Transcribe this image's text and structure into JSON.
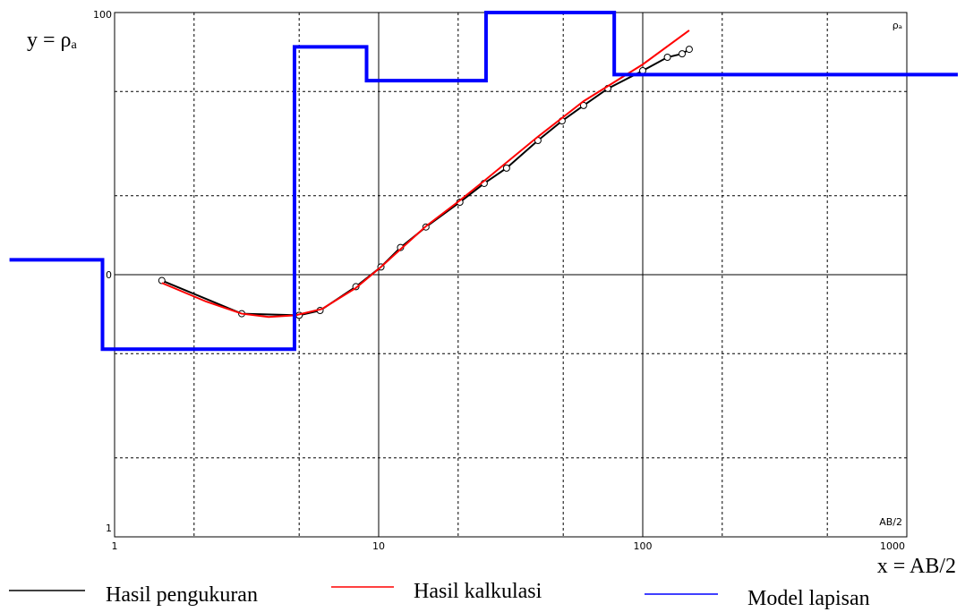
{
  "chart_data": {
    "type": "line",
    "y_label": "y = ρₐ",
    "x_label": "x = AB/2",
    "y_corner_label": "ρₐ",
    "x_corner_label": "AB/2",
    "log_x": true,
    "log_y": true,
    "grid": true,
    "xlim": [
      1,
      1000
    ],
    "ylim": [
      1,
      100
    ],
    "xticks": [
      1,
      10,
      100,
      1000
    ],
    "yticks": [
      1,
      {
        "value": 10,
        "label": "0"
      },
      100
    ],
    "x_minor_ticks": [
      2,
      5,
      20,
      50,
      200,
      500
    ],
    "y_minor_ticks": [
      2,
      5,
      20,
      50
    ],
    "series": [
      {
        "name": "Hasil pengukuran",
        "color": "#000000",
        "marker": "circle",
        "x": [
          1.51,
          3.03,
          5.0,
          6.0,
          8.2,
          10.2,
          12.1,
          15.1,
          20.3,
          25.1,
          30.5,
          40.1,
          49.5,
          59.7,
          73.8,
          100,
          124,
          141,
          150
        ],
        "values": [
          9.5,
          7.1,
          7.0,
          7.3,
          9.0,
          10.7,
          12.7,
          15.2,
          18.9,
          22.3,
          25.5,
          32.5,
          38.6,
          44.2,
          51.3,
          60.0,
          67.5,
          69.6,
          72.4
        ]
      },
      {
        "name": "Hasil kalkulasi",
        "color": "#ff0000",
        "x": [
          1.51,
          2.22,
          3.03,
          3.83,
          4.84,
          6.1,
          8.2,
          10.2,
          15.1,
          20.3,
          25.1,
          40.1,
          59.7,
          100,
          150
        ],
        "values": [
          9.3,
          7.9,
          7.1,
          6.9,
          7.0,
          7.4,
          8.9,
          10.7,
          15.3,
          19.2,
          22.8,
          33.6,
          45.9,
          63.4,
          85.5
        ]
      },
      {
        "name": "Model lapisan",
        "color": "#0000ff",
        "x": [
          0.4,
          0.9,
          0.9,
          4.8,
          4.8,
          9,
          9,
          25.5,
          25.5,
          78,
          78,
          1560
        ],
        "values": [
          11.4,
          11.4,
          5.2,
          5.2,
          74,
          74,
          55,
          55,
          100,
          100,
          58,
          58
        ]
      }
    ]
  }
}
